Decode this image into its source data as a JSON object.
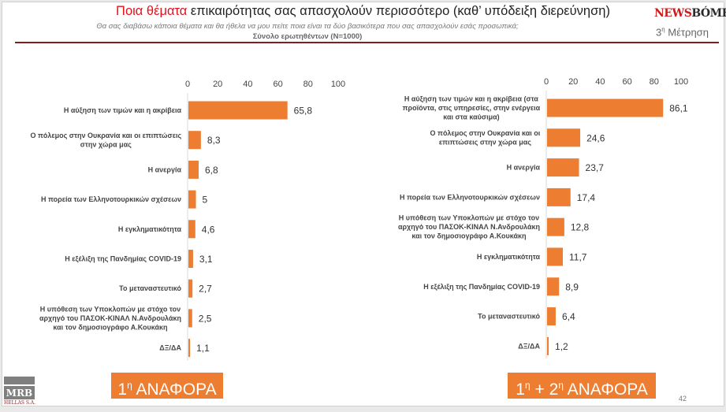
{
  "header": {
    "title_highlight": "Ποια θέματα",
    "title_rest": " επικαιρότητας σας απασχολούν περισσότερο (καθ’ υπόδειξη διερεύνηση)",
    "subtitle": "Θα σας διαβάσω κάποια θέματα και θα ήθελα να μου πείτε ποια είναι τα δύο βασικότερα που σας απασχολούν  εσάς προσωπικά;",
    "sample": "Σύνολο ερωτηθέντων (N=1000)",
    "brand_a": "NEWS",
    "brand_b": "BÓMB",
    "wave_num": "3",
    "wave_sup": "η",
    "wave_label": " Μέτρηση"
  },
  "footer": {
    "logo_main": "MRB",
    "logo_sub": "HELLAS S.A.",
    "page_number": "42",
    "badge_left": {
      "n": "1",
      "sup": "η",
      "text": " ΑΝΑΦΟΡΑ"
    },
    "badge_right": {
      "n1": "1",
      "sup1": "η",
      "plus": " + ",
      "n2": "2",
      "sup2": "η",
      "text": " ΑΝΑΦΟΡΑ"
    }
  },
  "colors": {
    "bar": "#ed7d31",
    "title_highlight": "#e3111b",
    "rule": "#8b1a1f"
  },
  "chart_data": [
    {
      "type": "bar",
      "orientation": "horizontal",
      "title": "1η ΑΝΑΦΟΡΑ",
      "xlim": [
        0,
        100
      ],
      "ticks": [
        "0",
        "20",
        "40",
        "60",
        "80",
        "100"
      ],
      "tick_position": "top",
      "grid": false,
      "categories": [
        [
          "Η αύξηση των τιμών και η ακρίβεια"
        ],
        [
          "Ο πόλεμος στην Ουκρανία και οι επιπτώσεις",
          "στην χώρα μας"
        ],
        [
          "Η ανεργία"
        ],
        [
          "Η πορεία των Ελληνοτουρκικών σχέσεων"
        ],
        [
          "Η εγκληματικότητα"
        ],
        [
          "Η εξέλιξη της Πανδημίας COVID-19"
        ],
        [
          "Το μεταναστευτικό"
        ],
        [
          "Η υπόθεση των Υποκλοπών με στόχο τον",
          "αρχηγό του ΠΑΣΟΚ-ΚΙΝΑΛ Ν.Ανδρουλάκη",
          "και τον δημοσιογράφο Α.Κουκάκη"
        ],
        [
          "ΔΞ/ΔΑ"
        ]
      ],
      "values": [
        65.8,
        8.3,
        6.8,
        5,
        4.6,
        3.1,
        2.7,
        2.5,
        1.1
      ],
      "value_labels": [
        "65,8",
        "8,3",
        "6,8",
        "5",
        "4,6",
        "3,1",
        "2,7",
        "2,5",
        "1,1"
      ]
    },
    {
      "type": "bar",
      "orientation": "horizontal",
      "title": "1η + 2η ΑΝΑΦΟΡΑ",
      "xlim": [
        0,
        100
      ],
      "ticks": [
        "0",
        "20",
        "40",
        "60",
        "80",
        "100"
      ],
      "tick_position": "top",
      "grid": false,
      "categories": [
        [
          "Η αύξηση των τιμών και η ακρίβεια (στα",
          "προϊόντα, στις υπηρεσίες, στην ενέργεια",
          "και στα καύσιμα)"
        ],
        [
          "Ο πόλεμος στην Ουκρανία και οι",
          "επιπτώσεις στην χώρα μας"
        ],
        [
          "Η ανεργία"
        ],
        [
          "Η πορεία των Ελληνοτουρκικών σχέσεων"
        ],
        [
          "Η υπόθεση των Υποκλοπών με στόχο τον",
          "αρχηγό του ΠΑΣΟΚ-ΚΙΝΑΛ Ν.Ανδρουλάκη",
          "και τον δημοσιογράφο Α.Κουκάκη"
        ],
        [
          "Η εγκληματικότητα"
        ],
        [
          "Η εξέλιξη της Πανδημίας COVID-19"
        ],
        [
          "Το μεταναστευτικό"
        ],
        [
          "ΔΞ/ΔΑ"
        ]
      ],
      "values": [
        86.1,
        24.6,
        23.7,
        17.4,
        12.8,
        11.7,
        8.9,
        6.4,
        1.2
      ],
      "value_labels": [
        "86,1",
        "24,6",
        "23,7",
        "17,4",
        "12,8",
        "11,7",
        "8,9",
        "6,4",
        "1,2"
      ]
    }
  ]
}
